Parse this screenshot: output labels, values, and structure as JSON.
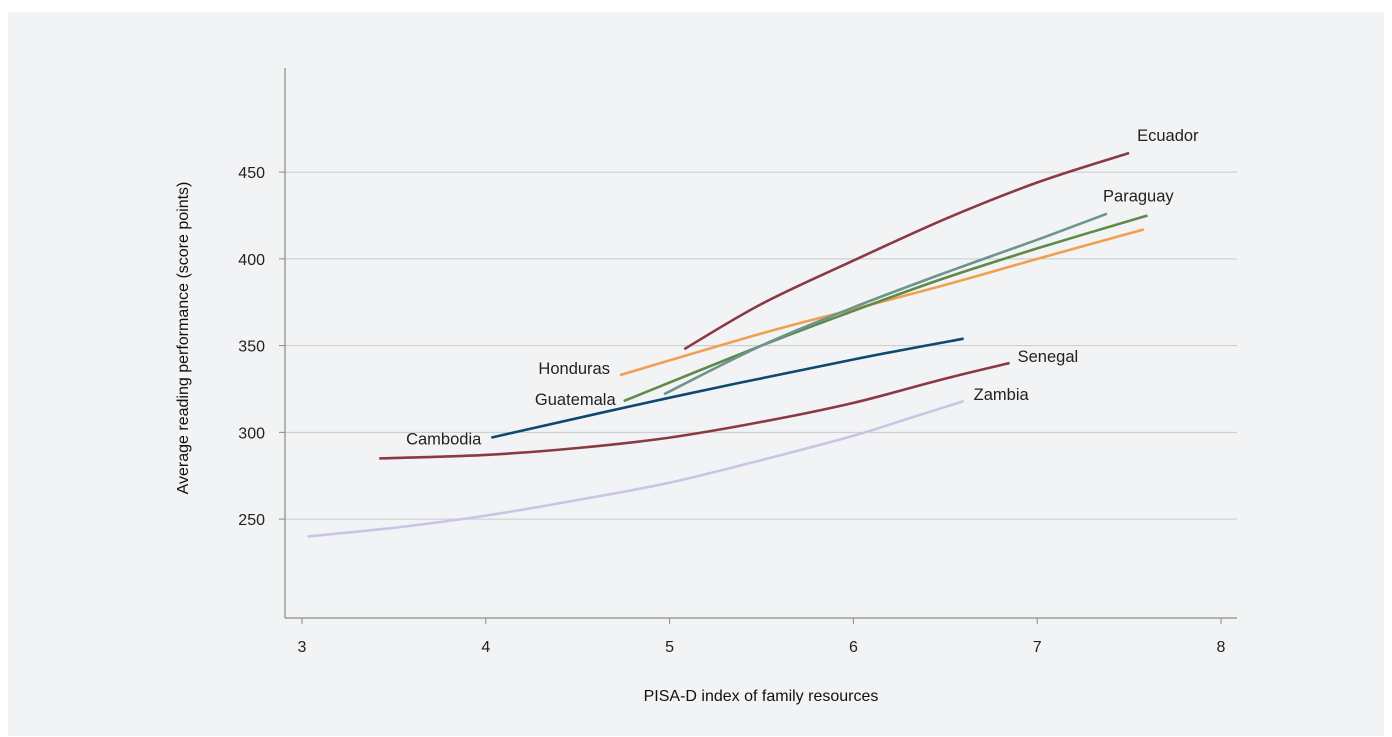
{
  "chart_data": {
    "type": "line",
    "title": "",
    "xlabel": "PISA-D index of family resources",
    "ylabel": "Average reading performance (score points)",
    "xlim": [
      2.9,
      8.1
    ],
    "ylim": [
      193,
      510
    ],
    "xticks": [
      3,
      4,
      5,
      6,
      7,
      8
    ],
    "yticks": [
      250,
      300,
      350,
      400,
      450
    ],
    "grid": "horizontal",
    "legend": "direct labels",
    "series": [
      {
        "name": "Ecuador",
        "color": "#8b3a44",
        "x": [
          5.08,
          5.5,
          6.0,
          6.5,
          7.0,
          7.5
        ],
        "y": [
          348,
          374,
          399,
          423,
          444,
          461
        ]
      },
      {
        "name": "Paraguay",
        "color": "#6e9490",
        "x": [
          4.97,
          5.5,
          6.0,
          6.5,
          7.0,
          7.38
        ],
        "y": [
          322,
          350,
          372,
          392,
          411,
          426
        ]
      },
      {
        "name": "Guatemala",
        "color": "#5f8a48",
        "x": [
          4.75,
          5.5,
          6.0,
          6.5,
          7.0,
          7.6
        ],
        "y": [
          318,
          350,
          370,
          389,
          406,
          425
        ]
      },
      {
        "name": "Honduras",
        "color": "#f0a050",
        "x": [
          4.73,
          5.5,
          6.0,
          6.5,
          7.0,
          7.58
        ],
        "y": [
          333,
          357,
          371,
          385,
          400,
          417
        ]
      },
      {
        "name": "Cambodia",
        "color": "#0d4a6e",
        "x": [
          4.03,
          5.0,
          6.0,
          6.6
        ],
        "y": [
          297,
          320,
          342,
          354
        ]
      },
      {
        "name": "Senegal",
        "color": "#8b3a44",
        "x": [
          3.42,
          4.0,
          4.5,
          5.0,
          5.5,
          6.0,
          6.5,
          6.85
        ],
        "y": [
          285,
          287,
          291,
          297,
          306,
          317,
          331,
          340
        ]
      },
      {
        "name": "Zambia",
        "color": "#c9c6e4",
        "x": [
          3.03,
          3.5,
          4.0,
          4.5,
          5.0,
          5.5,
          6.0,
          6.3,
          6.6
        ],
        "y": [
          240,
          245,
          252,
          261,
          271,
          284,
          298,
          308,
          318
        ]
      }
    ]
  }
}
